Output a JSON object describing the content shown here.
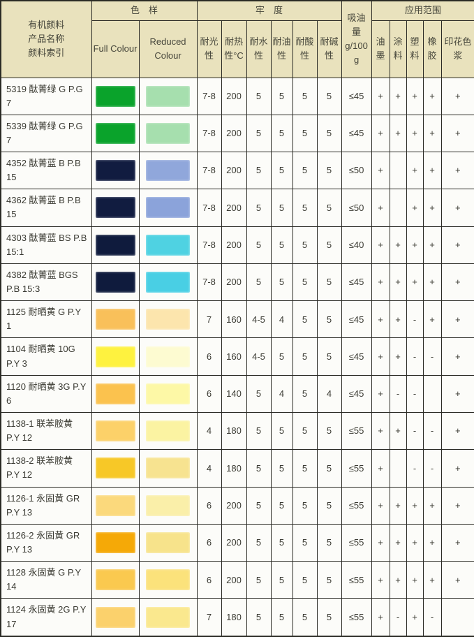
{
  "table": {
    "header": {
      "product_lines": [
        "有机颜料",
        "产品名称",
        "颜料索引"
      ],
      "color_sample": "色　样",
      "full_colour": "Full Colour",
      "reduced_colour": "Reduced Colour",
      "fastness": "牢　度",
      "light": "耐光性",
      "heat": "耐热性°C",
      "water": "耐水性",
      "oil": "耐油性",
      "acid": "耐酸性",
      "alkali": "耐碱性",
      "oil_absorption": "吸油量 g/100g",
      "application": "应用范围",
      "ink": "油墨",
      "coating": "涂料",
      "plastic": "塑料",
      "rubber": "橡胶",
      "print_paste": "印花色浆"
    },
    "colors": {
      "header_bg": "#e9e2bd",
      "cell_bg": "#fcfcf9",
      "border": "#2b2b25"
    },
    "rows": [
      {
        "name": "5319 酞菁绿 G P.G 7",
        "full": "#0aa32b",
        "reduced": "#a6dfae",
        "light": "7-8",
        "heat": "200",
        "water": "5",
        "oil": "5",
        "acid": "5",
        "alkali": "5",
        "absorb": "≤45",
        "apps": [
          "+",
          "+",
          "+",
          "+",
          "+"
        ]
      },
      {
        "name": "5339 酞菁绿 G P.G 7",
        "full": "#0aa32b",
        "reduced": "#a6dfae",
        "light": "7-8",
        "heat": "200",
        "water": "5",
        "oil": "5",
        "acid": "5",
        "alkali": "5",
        "absorb": "≤45",
        "apps": [
          "+",
          "+",
          "+",
          "+",
          "+"
        ]
      },
      {
        "name": "4352 酞菁蓝 B P.B 15",
        "full": "#111c40",
        "reduced": "#90a7db",
        "light": "7-8",
        "heat": "200",
        "water": "5",
        "oil": "5",
        "acid": "5",
        "alkali": "5",
        "absorb": "≤50",
        "apps": [
          "+",
          "",
          "+",
          "+",
          "+"
        ]
      },
      {
        "name": "4362 酞菁蓝 B P.B 15",
        "full": "#111c40",
        "reduced": "#8ba3da",
        "light": "7-8",
        "heat": "200",
        "water": "5",
        "oil": "5",
        "acid": "5",
        "alkali": "5",
        "absorb": "≤50",
        "apps": [
          "+",
          "",
          "+",
          "+",
          "+"
        ]
      },
      {
        "name": "4303 酞菁蓝 BS P.B 15:1",
        "full": "#0f1b3d",
        "reduced": "#4fd2e2",
        "light": "7-8",
        "heat": "200",
        "water": "5",
        "oil": "5",
        "acid": "5",
        "alkali": "5",
        "absorb": "≤40",
        "apps": [
          "+",
          "+",
          "+",
          "+",
          "+"
        ]
      },
      {
        "name": "4382 酞菁蓝 BGS P.B 15:3",
        "full": "#0f1b3d",
        "reduced": "#49cfe4",
        "light": "7-8",
        "heat": "200",
        "water": "5",
        "oil": "5",
        "acid": "5",
        "alkali": "5",
        "absorb": "≤45",
        "apps": [
          "+",
          "+",
          "+",
          "+",
          "+"
        ]
      },
      {
        "name": "1125 耐晒黄 G P.Y 1",
        "full": "#f9c05a",
        "reduced": "#fce5ad",
        "light": "7",
        "heat": "160",
        "water": "4-5",
        "oil": "4",
        "acid": "5",
        "alkali": "5",
        "absorb": "≤45",
        "apps": [
          "+",
          "+",
          "-",
          "+",
          "+"
        ]
      },
      {
        "name": "1104 耐晒黄 10G P.Y 3",
        "full": "#fef23f",
        "reduced": "#fdfbd1",
        "light": "6",
        "heat": "160",
        "water": "4-5",
        "oil": "5",
        "acid": "5",
        "alkali": "5",
        "absorb": "≤45",
        "apps": [
          "+",
          "+",
          "-",
          "-",
          "+"
        ]
      },
      {
        "name": "1120 耐晒黄 3G P.Y 6",
        "full": "#fbc24e",
        "reduced": "#fdf8a6",
        "light": "6",
        "heat": "140",
        "water": "5",
        "oil": "4",
        "acid": "5",
        "alkali": "4",
        "absorb": "≤45",
        "apps": [
          "+",
          "-",
          "-",
          "",
          "+"
        ]
      },
      {
        "name": "1138-1 联苯胺黄 P.Y 12",
        "full": "#fcd169",
        "reduced": "#fbf3a2",
        "light": "4",
        "heat": "180",
        "water": "5",
        "oil": "5",
        "acid": "5",
        "alkali": "5",
        "absorb": "≤55",
        "apps": [
          "+",
          "+",
          "-",
          "-",
          "+"
        ]
      },
      {
        "name": "1138-2 联苯胺黄 P.Y 12",
        "full": "#f7c827",
        "reduced": "#f7e390",
        "light": "4",
        "heat": "180",
        "water": "5",
        "oil": "5",
        "acid": "5",
        "alkali": "5",
        "absorb": "≤55",
        "apps": [
          "+",
          "",
          "-",
          "-",
          "+"
        ]
      },
      {
        "name": "1126-1 永固黄 GR P.Y 13",
        "full": "#fbd97c",
        "reduced": "#faefa9",
        "light": "6",
        "heat": "200",
        "water": "5",
        "oil": "5",
        "acid": "5",
        "alkali": "5",
        "absorb": "≤55",
        "apps": [
          "+",
          "+",
          "+",
          "+",
          "+"
        ]
      },
      {
        "name": "1126-2 永固黄 GR P.Y 13",
        "full": "#f5a907",
        "reduced": "#f7e38b",
        "light": "6",
        "heat": "200",
        "water": "5",
        "oil": "5",
        "acid": "5",
        "alkali": "5",
        "absorb": "≤55",
        "apps": [
          "+",
          "+",
          "+",
          "+",
          "+"
        ]
      },
      {
        "name": "1128 永固黄 G P.Y 14",
        "full": "#fac94f",
        "reduced": "#fbe27b",
        "light": "6",
        "heat": "200",
        "water": "5",
        "oil": "5",
        "acid": "5",
        "alkali": "5",
        "absorb": "≤55",
        "apps": [
          "+",
          "+",
          "+",
          "+",
          "+"
        ]
      },
      {
        "name": "1124 永固黄 2G P.Y 17",
        "full": "#fbd16c",
        "reduced": "#fae88e",
        "light": "7",
        "heat": "180",
        "water": "5",
        "oil": "5",
        "acid": "5",
        "alkali": "5",
        "absorb": "≤55",
        "apps": [
          "+",
          "-",
          "+",
          "-",
          ""
        ]
      }
    ]
  }
}
